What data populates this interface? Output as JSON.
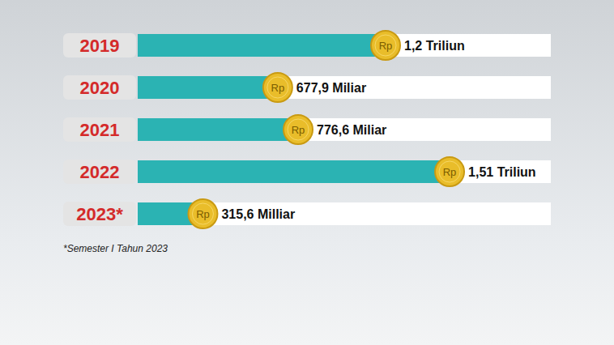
{
  "chart_data": {
    "type": "bar",
    "orientation": "horizontal",
    "categories": [
      "2019",
      "2020",
      "2021",
      "2022",
      "2023*"
    ],
    "values": [
      1200,
      677.9,
      776.6,
      1510,
      315.6
    ],
    "value_labels": [
      "1,2 Triliun",
      "677,9 Miliar",
      "776,6 Miliar",
      "1,51 Triliun",
      "315,6 Milliar"
    ],
    "data_labels": true,
    "color": "#2bb3b3",
    "xlim": [
      0,
      2000
    ],
    "tick_labels": "y",
    "coin_label": "Rp",
    "footnote": "*Semester I Tahun 2023"
  }
}
